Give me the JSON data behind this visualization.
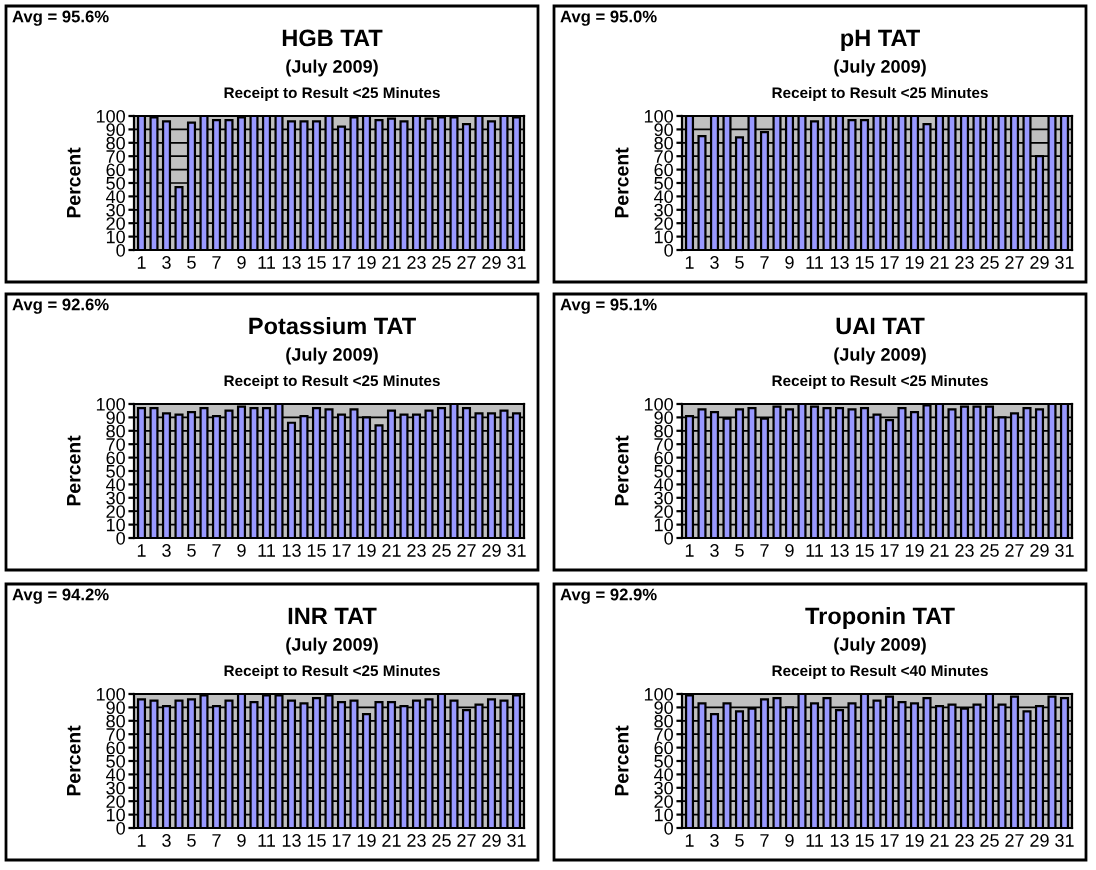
{
  "chart_data": [
    {
      "type": "bar",
      "title": "HGB TAT",
      "subtitle": "(July 2009)",
      "ylabel": "Percent",
      "annotations": [
        "Avg = 95.6%",
        "Receipt to Result <25 Minutes"
      ],
      "categories": [
        "1",
        null,
        "3",
        null,
        "5",
        null,
        "7",
        null,
        "9",
        null,
        "11",
        null,
        "13",
        null,
        "15",
        null,
        "17",
        null,
        "19",
        null,
        "21",
        null,
        "23",
        null,
        "25",
        null,
        "27",
        null,
        "29",
        null,
        "31"
      ],
      "color": "#9999ff",
      "values": [
        100,
        99,
        96,
        47,
        95,
        100,
        97,
        97,
        99,
        100,
        100,
        100,
        96,
        96,
        96,
        100,
        92,
        99,
        100,
        97,
        98,
        96,
        100,
        98,
        99,
        99,
        94,
        100,
        96,
        100,
        99
      ],
      "ylim": [
        0,
        100
      ],
      "yticks": [
        0,
        10,
        20,
        30,
        40,
        50,
        60,
        70,
        80,
        90,
        100
      ],
      "grid": "y"
    },
    {
      "type": "bar",
      "title": "pH TAT",
      "subtitle": "(July 2009)",
      "ylabel": "Percent",
      "annotations": [
        "Avg = 95.0%",
        "Receipt to Result <25 Minutes"
      ],
      "categories": [
        "1",
        null,
        "3",
        null,
        "5",
        null,
        "7",
        null,
        "9",
        null,
        "11",
        null,
        "13",
        null,
        "15",
        null,
        "17",
        null,
        "19",
        null,
        "21",
        null,
        "23",
        null,
        "25",
        null,
        "27",
        null,
        "29",
        null,
        "31"
      ],
      "color": "#9999ff",
      "values": [
        100,
        85,
        100,
        100,
        84,
        100,
        88,
        100,
        100,
        100,
        96,
        100,
        100,
        97,
        97,
        100,
        100,
        100,
        100,
        94,
        100,
        100,
        100,
        100,
        100,
        100,
        100,
        100,
        70,
        100,
        100
      ],
      "ylim": [
        0,
        100
      ],
      "yticks": [
        0,
        10,
        20,
        30,
        40,
        50,
        60,
        70,
        80,
        90,
        100
      ],
      "grid": "y"
    },
    {
      "type": "bar",
      "title": "Potassium TAT",
      "subtitle": "(July 2009)",
      "ylabel": "Percent",
      "annotations": [
        "Avg = 92.6%",
        "Receipt to Result <25 Minutes"
      ],
      "categories": [
        "1",
        null,
        "3",
        null,
        "5",
        null,
        "7",
        null,
        "9",
        null,
        "11",
        null,
        "13",
        null,
        "15",
        null,
        "17",
        null,
        "19",
        null,
        "21",
        null,
        "23",
        null,
        "25",
        null,
        "27",
        null,
        "29",
        null,
        "31"
      ],
      "color": "#9999ff",
      "values": [
        97,
        97,
        93,
        92,
        94,
        97,
        91,
        95,
        98,
        97,
        97,
        100,
        86,
        91,
        97,
        96,
        92,
        96,
        90,
        84,
        95,
        92,
        92,
        95,
        97,
        100,
        97,
        93,
        93,
        95,
        93
      ],
      "ylim": [
        0,
        100
      ],
      "yticks": [
        0,
        10,
        20,
        30,
        40,
        50,
        60,
        70,
        80,
        90,
        100
      ],
      "grid": "y"
    },
    {
      "type": "bar",
      "title": "UAI TAT",
      "subtitle": "(July 2009)",
      "ylabel": "Percent",
      "annotations": [
        "Avg = 95.1%",
        "Receipt to Result <25 Minutes"
      ],
      "categories": [
        "1",
        null,
        "3",
        null,
        "5",
        null,
        "7",
        null,
        "9",
        null,
        "11",
        null,
        "13",
        null,
        "15",
        null,
        "17",
        null,
        "19",
        null,
        "21",
        null,
        "23",
        null,
        "25",
        null,
        "27",
        null,
        "29",
        null,
        "31"
      ],
      "color": "#9999ff",
      "values": [
        91,
        96,
        94,
        89,
        96,
        97,
        89,
        98,
        96,
        100,
        98,
        97,
        97,
        96,
        97,
        92,
        88,
        97,
        94,
        99,
        100,
        96,
        98,
        98,
        98,
        90,
        93,
        97,
        96,
        100,
        100
      ],
      "ylim": [
        0,
        100
      ],
      "yticks": [
        0,
        10,
        20,
        30,
        40,
        50,
        60,
        70,
        80,
        90,
        100
      ],
      "grid": "y"
    },
    {
      "type": "bar",
      "title": "INR TAT",
      "subtitle": "(July 2009)",
      "ylabel": "Percent",
      "annotations": [
        "Avg = 94.2%",
        "Receipt to Result <25 Minutes"
      ],
      "categories": [
        "1",
        null,
        "3",
        null,
        "5",
        null,
        "7",
        null,
        "9",
        null,
        "11",
        null,
        "13",
        null,
        "15",
        null,
        "17",
        null,
        "19",
        null,
        "21",
        null,
        "23",
        null,
        "25",
        null,
        "27",
        null,
        "29",
        null,
        "31"
      ],
      "color": "#9999ff",
      "values": [
        96,
        95,
        91,
        95,
        96,
        99,
        91,
        95,
        100,
        94,
        99,
        99,
        95,
        93,
        97,
        99,
        94,
        95,
        85,
        94,
        94,
        91,
        95,
        96,
        100,
        95,
        88,
        92,
        96,
        95,
        99
      ],
      "ylim": [
        0,
        100
      ],
      "yticks": [
        0,
        10,
        20,
        30,
        40,
        50,
        60,
        70,
        80,
        90,
        100
      ],
      "grid": "y"
    },
    {
      "type": "bar",
      "title": "Troponin TAT",
      "subtitle": "(July 2009)",
      "ylabel": "Percent",
      "annotations": [
        "Avg = 92.9%",
        "Receipt to Result <40 Minutes"
      ],
      "categories": [
        "1",
        null,
        "3",
        null,
        "5",
        null,
        "7",
        null,
        "9",
        null,
        "11",
        null,
        "13",
        null,
        "15",
        null,
        "17",
        null,
        "19",
        null,
        "21",
        null,
        "23",
        null,
        "25",
        null,
        "27",
        null,
        "29",
        null,
        "31"
      ],
      "color": "#9999ff",
      "values": [
        99,
        93,
        85,
        93,
        87,
        89,
        96,
        97,
        90,
        100,
        93,
        97,
        88,
        93,
        100,
        95,
        98,
        94,
        93,
        97,
        91,
        92,
        89,
        92,
        100,
        92,
        98,
        87,
        91,
        98,
        97
      ],
      "ylim": [
        0,
        100
      ],
      "yticks": [
        0,
        10,
        20,
        30,
        40,
        50,
        60,
        70,
        80,
        90,
        100
      ],
      "grid": "y"
    }
  ]
}
